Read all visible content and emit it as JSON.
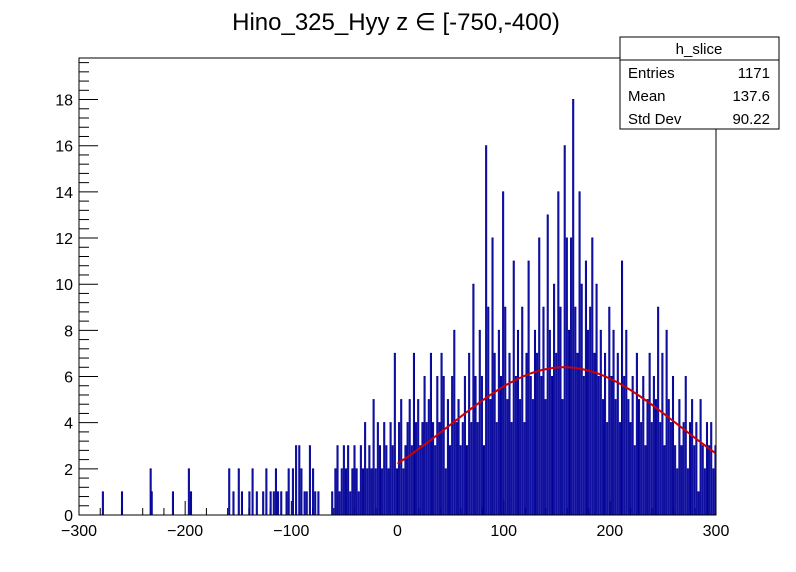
{
  "chart_data": {
    "type": "histogram",
    "title": "Hino_325_Hyy z  ∈ [-750,-400)",
    "xlabel": "",
    "ylabel": "",
    "xlim": [
      -300,
      300
    ],
    "ylim": [
      0,
      19.8
    ],
    "x_ticks": [
      -300,
      -200,
      -100,
      0,
      100,
      200,
      300
    ],
    "x_tick_labels": [
      "−300",
      "−200",
      "−100",
      "0",
      "100",
      "200",
      "300"
    ],
    "y_ticks": [
      0,
      2,
      4,
      6,
      8,
      10,
      12,
      14,
      16,
      18
    ],
    "y_tick_labels": [
      "0",
      "2",
      "4",
      "6",
      "8",
      "10",
      "12",
      "14",
      "16",
      "18"
    ],
    "bin_edges_range": [
      -300,
      300
    ],
    "bin_width": 1,
    "histogram": {
      "name": "h_slice",
      "color": "#000099",
      "nonzero_bins": [
        [
          -278,
          1
        ],
        [
          -260,
          1
        ],
        [
          -233,
          2
        ],
        [
          -232,
          1
        ],
        [
          -212,
          1
        ],
        [
          -197,
          2
        ],
        [
          -195,
          1
        ],
        [
          -159,
          2
        ],
        [
          -155,
          1
        ],
        [
          -150,
          2
        ],
        [
          -147,
          1
        ],
        [
          -140,
          1
        ],
        [
          -137,
          2
        ],
        [
          -133,
          1
        ],
        [
          -127,
          1
        ],
        [
          -124,
          2
        ],
        [
          -120,
          1
        ],
        [
          -117,
          1
        ],
        [
          -115,
          2
        ],
        [
          -113,
          1
        ],
        [
          -110,
          1
        ],
        [
          -105,
          1
        ],
        [
          -103,
          2
        ],
        [
          -99,
          2
        ],
        [
          -96,
          3
        ],
        [
          -93,
          3
        ],
        [
          -91,
          2
        ],
        [
          -88,
          1
        ],
        [
          -86,
          1
        ],
        [
          -83,
          3
        ],
        [
          -80,
          2
        ],
        [
          -78,
          1
        ],
        [
          -75,
          1
        ],
        [
          -62,
          1
        ],
        [
          -59,
          2
        ],
        [
          -57,
          3
        ],
        [
          -55,
          1
        ],
        [
          -53,
          2
        ],
        [
          -51,
          3
        ],
        [
          -49,
          2
        ],
        [
          -47,
          3
        ],
        [
          -45,
          1
        ],
        [
          -43,
          2
        ],
        [
          -41,
          3
        ],
        [
          -39,
          2
        ],
        [
          -37,
          1
        ],
        [
          -35,
          3
        ],
        [
          -33,
          2
        ],
        [
          -31,
          4
        ],
        [
          -29,
          2
        ],
        [
          -27,
          3
        ],
        [
          -25,
          2
        ],
        [
          -23,
          5
        ],
        [
          -21,
          2
        ],
        [
          -19,
          4
        ],
        [
          -17,
          3
        ],
        [
          -15,
          2
        ],
        [
          -13,
          4
        ],
        [
          -11,
          3
        ],
        [
          -9,
          2
        ],
        [
          -7,
          4
        ],
        [
          -5,
          3
        ],
        [
          -3,
          7
        ],
        [
          -1,
          2
        ],
        [
          1,
          4
        ],
        [
          3,
          5
        ],
        [
          5,
          2
        ],
        [
          7,
          3
        ],
        [
          9,
          4
        ],
        [
          11,
          5
        ],
        [
          13,
          3
        ],
        [
          15,
          7
        ],
        [
          17,
          4
        ],
        [
          19,
          5
        ],
        [
          21,
          3
        ],
        [
          23,
          4
        ],
        [
          25,
          6
        ],
        [
          27,
          4
        ],
        [
          29,
          5
        ],
        [
          31,
          7
        ],
        [
          33,
          4
        ],
        [
          35,
          3
        ],
        [
          37,
          6
        ],
        [
          39,
          4
        ],
        [
          41,
          7
        ],
        [
          43,
          6
        ],
        [
          45,
          2
        ],
        [
          47,
          5
        ],
        [
          49,
          3
        ],
        [
          51,
          6
        ],
        [
          53,
          8
        ],
        [
          55,
          4
        ],
        [
          57,
          5
        ],
        [
          59,
          3
        ],
        [
          61,
          4
        ],
        [
          63,
          6
        ],
        [
          65,
          3
        ],
        [
          67,
          7
        ],
        [
          69,
          4
        ],
        [
          71,
          10
        ],
        [
          73,
          6
        ],
        [
          75,
          4
        ],
        [
          77,
          8
        ],
        [
          79,
          6
        ],
        [
          81,
          3
        ],
        [
          83,
          16
        ],
        [
          85,
          9
        ],
        [
          87,
          5
        ],
        [
          89,
          12
        ],
        [
          91,
          7
        ],
        [
          93,
          4
        ],
        [
          95,
          8
        ],
        [
          97,
          6
        ],
        [
          99,
          14
        ],
        [
          101,
          9
        ],
        [
          103,
          5
        ],
        [
          105,
          7
        ],
        [
          107,
          4
        ],
        [
          109,
          11
        ],
        [
          111,
          6
        ],
        [
          113,
          8
        ],
        [
          115,
          5
        ],
        [
          117,
          9
        ],
        [
          119,
          4
        ],
        [
          121,
          7
        ],
        [
          123,
          11
        ],
        [
          125,
          6
        ],
        [
          127,
          5
        ],
        [
          129,
          8
        ],
        [
          131,
          7
        ],
        [
          133,
          12
        ],
        [
          135,
          6
        ],
        [
          137,
          9
        ],
        [
          139,
          5
        ],
        [
          141,
          13
        ],
        [
          143,
          8
        ],
        [
          145,
          6
        ],
        [
          147,
          10
        ],
        [
          149,
          7
        ],
        [
          151,
          14
        ],
        [
          153,
          9
        ],
        [
          155,
          5
        ],
        [
          157,
          16
        ],
        [
          159,
          12
        ],
        [
          161,
          8
        ],
        [
          163,
          12
        ],
        [
          165,
          18
        ],
        [
          167,
          9
        ],
        [
          169,
          7
        ],
        [
          171,
          14
        ],
        [
          173,
          10
        ],
        [
          175,
          6
        ],
        [
          177,
          11
        ],
        [
          179,
          8
        ],
        [
          181,
          9
        ],
        [
          183,
          12
        ],
        [
          185,
          7
        ],
        [
          187,
          10
        ],
        [
          189,
          6
        ],
        [
          191,
          8
        ],
        [
          193,
          5
        ],
        [
          195,
          7
        ],
        [
          197,
          4
        ],
        [
          199,
          9
        ],
        [
          201,
          6
        ],
        [
          203,
          8
        ],
        [
          205,
          5
        ],
        [
          207,
          7
        ],
        [
          209,
          4
        ],
        [
          211,
          11
        ],
        [
          213,
          6
        ],
        [
          215,
          8
        ],
        [
          217,
          5
        ],
        [
          219,
          4
        ],
        [
          221,
          6
        ],
        [
          223,
          3
        ],
        [
          225,
          7
        ],
        [
          227,
          5
        ],
        [
          229,
          4
        ],
        [
          231,
          6
        ],
        [
          233,
          3
        ],
        [
          235,
          5
        ],
        [
          237,
          7
        ],
        [
          239,
          4
        ],
        [
          241,
          6
        ],
        [
          243,
          5
        ],
        [
          245,
          9
        ],
        [
          247,
          4
        ],
        [
          249,
          7
        ],
        [
          251,
          3
        ],
        [
          253,
          8
        ],
        [
          255,
          5
        ],
        [
          257,
          4
        ],
        [
          259,
          6
        ],
        [
          261,
          3
        ],
        [
          263,
          2
        ],
        [
          265,
          5
        ],
        [
          267,
          3
        ],
        [
          269,
          4
        ],
        [
          271,
          6
        ],
        [
          273,
          2
        ],
        [
          275,
          4
        ],
        [
          277,
          5
        ],
        [
          279,
          3
        ],
        [
          281,
          4
        ],
        [
          283,
          1
        ],
        [
          285,
          5
        ],
        [
          287,
          3
        ],
        [
          289,
          2
        ],
        [
          291,
          4
        ],
        [
          293,
          3
        ],
        [
          295,
          4
        ],
        [
          297,
          2
        ],
        [
          299,
          3
        ]
      ]
    },
    "fit": {
      "color": "#cc0000",
      "function": "gaus",
      "x_range": [
        0,
        300
      ],
      "constant": 6.4,
      "mean": 157,
      "sigma": 108
    },
    "stats_box": {
      "title": "h_slice",
      "rows": [
        {
          "label": "Entries",
          "value": "1171"
        },
        {
          "label": "Mean",
          "value": "137.6"
        },
        {
          "label": "Std Dev",
          "value": "90.22"
        }
      ]
    }
  }
}
